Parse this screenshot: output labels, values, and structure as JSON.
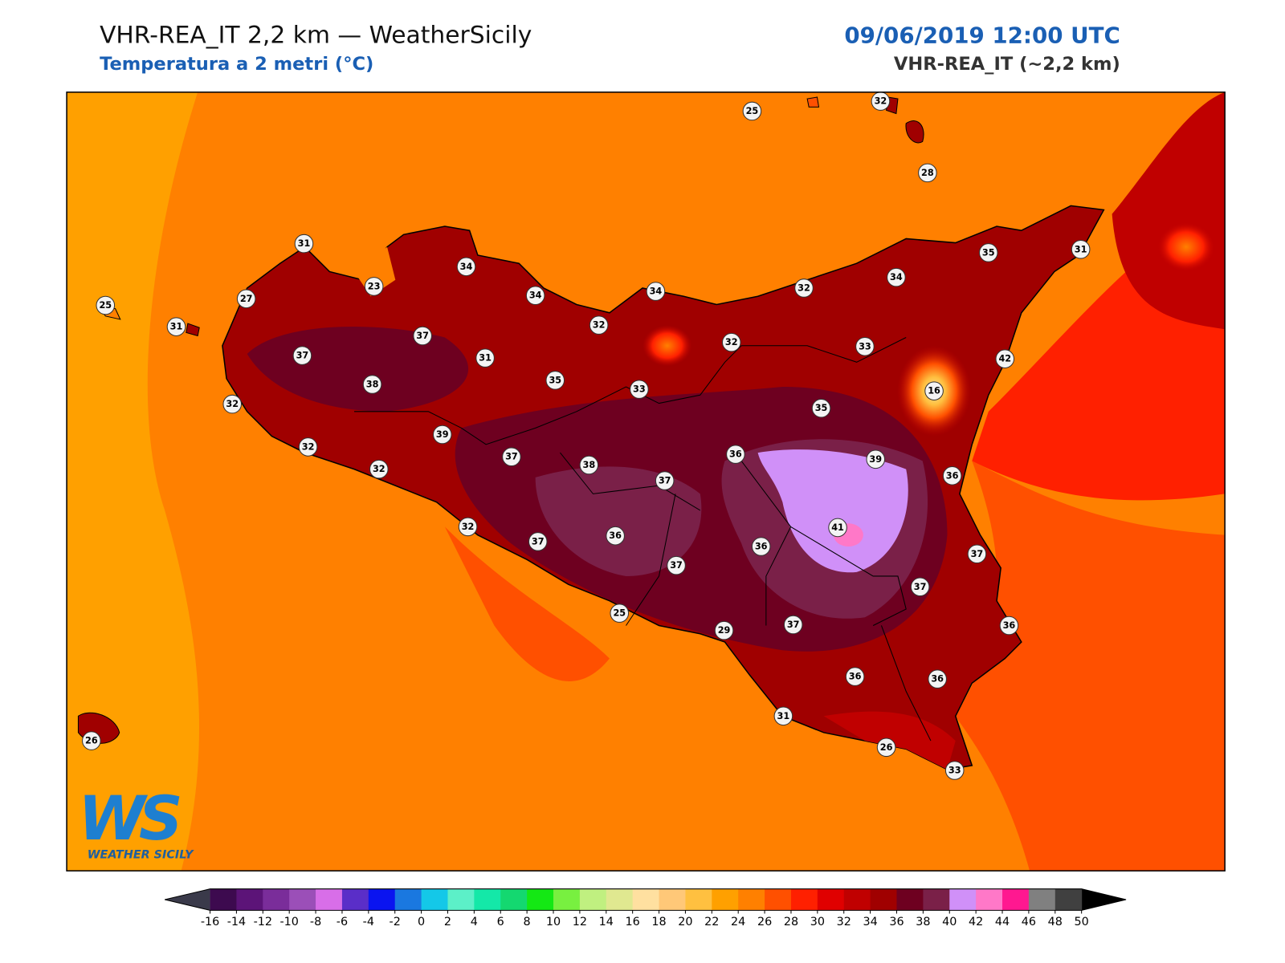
{
  "header": {
    "title": "VHR-REA_IT 2,2 km — WeatherSicily",
    "subtitle": "Temperatura a 2 metri (°C)",
    "datetime": "09/06/2019 12:00 UTC",
    "model": "VHR-REA_IT (~2,2 km)"
  },
  "map": {
    "stations": [
      25,
      32,
      28,
      31,
      34,
      23,
      34,
      34,
      32,
      34,
      35,
      31,
      25,
      27,
      31,
      37,
      32,
      32,
      33,
      42,
      37,
      31,
      38,
      35,
      33,
      16,
      35,
      32,
      39,
      32,
      37,
      36,
      39,
      32,
      38,
      37,
      36,
      32,
      41,
      37,
      36,
      36,
      37,
      37,
      37,
      25,
      29,
      37,
      36,
      36,
      36,
      31,
      26,
      26,
      33
    ]
  },
  "logo": {
    "mark": "WS",
    "name": "WEATHER SICILY"
  },
  "colorbar": {
    "ticks": [
      -16,
      -14,
      -12,
      -10,
      -8,
      -6,
      -4,
      -2,
      0,
      2,
      4,
      6,
      8,
      10,
      12,
      14,
      16,
      18,
      20,
      22,
      24,
      26,
      28,
      30,
      32,
      34,
      36,
      38,
      40,
      42,
      44,
      46,
      48,
      50
    ],
    "colors": [
      "#3d0a4f",
      "#5c1478",
      "#7a2d9a",
      "#9b4fb8",
      "#d86ee8",
      "#5a2ec8",
      "#0a14f0",
      "#1a78e0",
      "#14c8e8",
      "#5cf0c8",
      "#14e8a8",
      "#14d870",
      "#14e814",
      "#78f040",
      "#c0f080",
      "#e0e890",
      "#ffe0a0",
      "#ffc878",
      "#ffc040",
      "#ffa000",
      "#ff8000",
      "#ff5000",
      "#ff2000",
      "#e00000",
      "#c00000",
      "#a00000",
      "#6e0020",
      "#7a2048",
      "#d090f8",
      "#ff78c8",
      "#ff1890",
      "#808080",
      "#404040"
    ],
    "under_color": "#3a3a4a",
    "over_color": "#000000"
  }
}
